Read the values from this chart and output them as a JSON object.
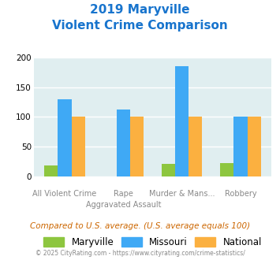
{
  "title_line1": "2019 Maryville",
  "title_line2": "Violent Crime Comparison",
  "top_labels": [
    "",
    "Rape",
    "Murder & Mans...",
    ""
  ],
  "bottom_labels": [
    "All Violent Crime",
    "Aggravated Assault",
    "",
    "Robbery"
  ],
  "maryville": [
    19,
    0,
    21,
    23
  ],
  "missouri": [
    130,
    112,
    185,
    100
  ],
  "national": [
    101,
    101,
    101,
    101
  ],
  "bar_width": 0.23,
  "ylim": [
    0,
    200
  ],
  "yticks": [
    0,
    50,
    100,
    150,
    200
  ],
  "color_maryville": "#8DC63F",
  "color_missouri": "#3FA9F5",
  "color_national": "#FBB040",
  "bg_color": "#E0EEF0",
  "title_color": "#1874CD",
  "legend_labels": [
    "Maryville",
    "Missouri",
    "National"
  ],
  "footer_text": "Compared to U.S. average. (U.S. average equals 100)",
  "copyright_text": "© 2025 CityRating.com - https://www.cityrating.com/crime-statistics/",
  "grid_color": "#ffffff",
  "label_color": "#888888"
}
